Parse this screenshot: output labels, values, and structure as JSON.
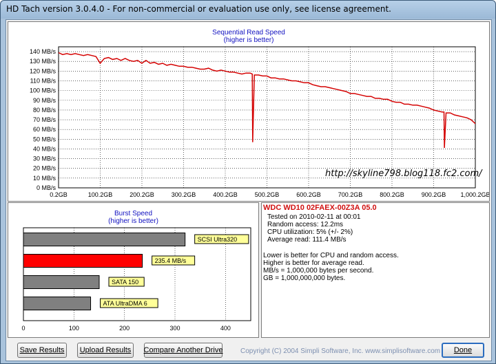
{
  "window": {
    "title": "HD Tach version 3.0.4.0  - For non-commercial or evaluation use only, see license agreement."
  },
  "read_chart": {
    "title_line1": "Sequential Read Speed",
    "title_line2": "(higher is better)",
    "watermark": "http://skyline798.blog118.fc2.com/",
    "y_ticks": [
      "140 MB/s",
      "130 MB/s",
      "120 MB/s",
      "110 MB/s",
      "100 MB/s",
      "90 MB/s",
      "80 MB/s",
      "70 MB/s",
      "60 MB/s",
      "50 MB/s",
      "40 MB/s",
      "30 MB/s",
      "20 MB/s",
      "10 MB/s",
      "0 MB/s"
    ],
    "x_ticks": [
      "0.2GB",
      "100.2GB",
      "200.2GB",
      "300.2GB",
      "400.2GB",
      "500.2GB",
      "600.2GB",
      "700.2GB",
      "800.2GB",
      "900.2GB",
      "1,000.2GB"
    ],
    "line_color": "#d40000"
  },
  "burst_chart": {
    "title_line1": "Burst Speed",
    "title_line2": "(higher is better)",
    "x_ticks": [
      "0",
      "100",
      "200",
      "300",
      "400"
    ]
  },
  "info": {
    "drive": "WDC WD10 02FAEX-00Z3A 05.0",
    "tested": "Tested on 2010-02-11 at 00:01",
    "random_access": "Random access: 12.2ms",
    "cpu": "CPU utilization: 5% (+/- 2%)",
    "average": "Average read: 111.4 MB/s",
    "note1": "Lower is better for CPU and random access.",
    "note2": "Higher is better for average read.",
    "note3": "MB/s = 1,000,000 bytes per second.",
    "note4": "GB = 1,000,000,000 bytes."
  },
  "buttons": {
    "save": "Save Results",
    "upload": "Upload Results",
    "compare": "Compare Another Drive",
    "done": "Done"
  },
  "footer": {
    "copyright": "Copyright (C) 2004 Simpli Software, Inc. www.simplisoftware.com"
  },
  "chart_data": [
    {
      "type": "line",
      "title": "Sequential Read Speed (higher is better)",
      "xlabel": "",
      "ylabel": "",
      "xlim": [
        0.2,
        1000.2
      ],
      "ylim": [
        0,
        145
      ],
      "grid": true,
      "series": [
        {
          "x": [
            0.2,
            10,
            20,
            30,
            40,
            50,
            60,
            70,
            80,
            90,
            100,
            110,
            120,
            130,
            140,
            150,
            160,
            170,
            180,
            190,
            200,
            210,
            220,
            230,
            240,
            250,
            260,
            270,
            280,
            290,
            300,
            310,
            320,
            330,
            340,
            350,
            360,
            370,
            380,
            390,
            400,
            410,
            420,
            430,
            440,
            450,
            460,
            465,
            466,
            470,
            480,
            490,
            500,
            510,
            520,
            530,
            540,
            550,
            560,
            570,
            580,
            590,
            600,
            610,
            620,
            630,
            640,
            650,
            660,
            670,
            680,
            690,
            700,
            710,
            720,
            730,
            740,
            750,
            760,
            770,
            780,
            790,
            800,
            810,
            820,
            830,
            840,
            850,
            860,
            870,
            880,
            890,
            900,
            910,
            920,
            925,
            926,
            930,
            940,
            950,
            960,
            970,
            980,
            990,
            1000.2
          ],
          "values": [
            139,
            137,
            138,
            137,
            138,
            137,
            136,
            137,
            136,
            135,
            128,
            133,
            134,
            132,
            133,
            131,
            133,
            131,
            130,
            131,
            128,
            131,
            128,
            129,
            127,
            128,
            126,
            127,
            126,
            125,
            125,
            124,
            124,
            123,
            122,
            122,
            123,
            121,
            120,
            121,
            120,
            119,
            119,
            118,
            117,
            118,
            118,
            117,
            47,
            116,
            116,
            115,
            115,
            113,
            113,
            112,
            112,
            111,
            110,
            110,
            109,
            108,
            108,
            106,
            105,
            104,
            104,
            103,
            102,
            101,
            100,
            99,
            97,
            97,
            96,
            95,
            94,
            94,
            92,
            92,
            91,
            91,
            89,
            88,
            88,
            86,
            86,
            85,
            85,
            84,
            83,
            82,
            80,
            79,
            78,
            78,
            41,
            77,
            77,
            75,
            74,
            73,
            72,
            70,
            66
          ]
        }
      ]
    },
    {
      "type": "bar",
      "title": "Burst Speed (higher is better)",
      "orientation": "horizontal",
      "xlim": [
        0,
        450
      ],
      "categories": [
        "SCSI Ultra320",
        "235.4 MB/s",
        "SATA 150",
        "ATA UltraDMA 6"
      ],
      "values": [
        320,
        235.4,
        150,
        133
      ],
      "colors": [
        "#808080",
        "#ff0000",
        "#808080",
        "#808080"
      ]
    }
  ]
}
